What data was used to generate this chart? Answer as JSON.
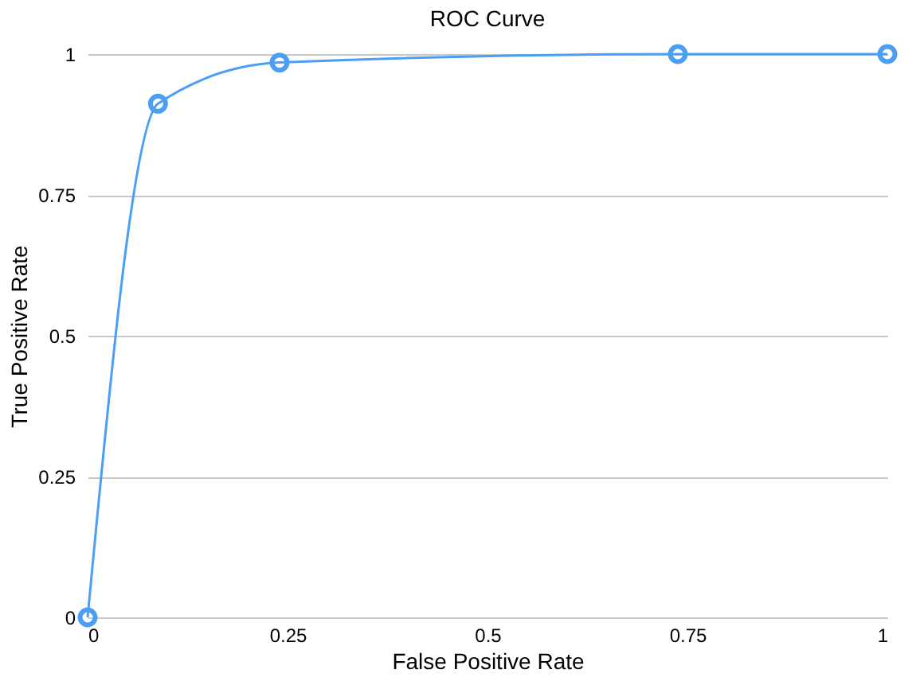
{
  "chart_data": {
    "type": "line",
    "title": "ROC Curve",
    "xlabel": "False Positive Rate",
    "ylabel": "True Positive Rate",
    "x": [
      0,
      0.088,
      0.24,
      0.738,
      1
    ],
    "series": [
      {
        "color": "#4a9ff5",
        "values": [
          0,
          0.912,
          0.985,
          1,
          1
        ]
      }
    ],
    "xlim": [
      0,
      1
    ],
    "xticks": [
      0,
      0.25,
      0.5,
      0.75,
      1
    ],
    "ylim": [
      0,
      1
    ],
    "yticks": [
      0,
      0.25,
      0.5,
      0.75,
      1
    ],
    "grid": "y",
    "marker": "circle",
    "line_style": "solid",
    "legend": false
  }
}
